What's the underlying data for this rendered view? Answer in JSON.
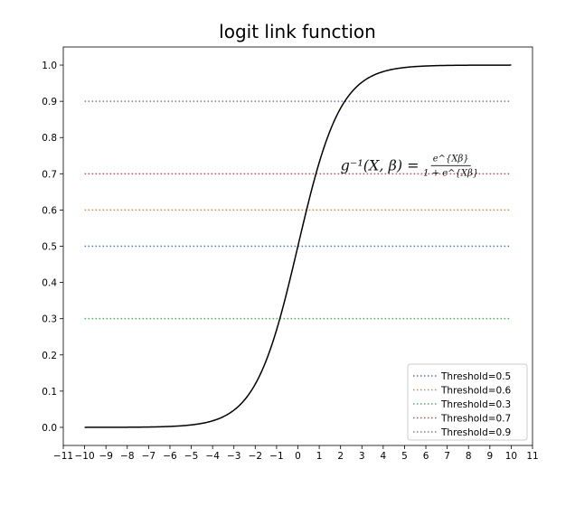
{
  "chart_data": {
    "type": "line",
    "title": "logit link function",
    "xlabel": "",
    "ylabel": "",
    "xlim": [
      -11,
      11
    ],
    "ylim": [
      -0.05,
      1.05
    ],
    "x_ticks": [
      -11,
      -10,
      -9,
      -8,
      -7,
      -6,
      -5,
      -4,
      -3,
      -2,
      -1,
      0,
      1,
      2,
      3,
      4,
      5,
      6,
      7,
      8,
      9,
      10,
      11
    ],
    "y_ticks": [
      0.0,
      0.1,
      0.2,
      0.3,
      0.4,
      0.5,
      0.6,
      0.7,
      0.8,
      0.9,
      1.0
    ],
    "x_tick_labels": [
      "−11",
      "−10",
      "−9",
      "−8",
      "−7",
      "−6",
      "−5",
      "−4",
      "−3",
      "−2",
      "−1",
      "0",
      "1",
      "2",
      "3",
      "4",
      "5",
      "6",
      "7",
      "8",
      "9",
      "10",
      "11"
    ],
    "y_tick_labels": [
      "0.0",
      "0.1",
      "0.2",
      "0.3",
      "0.4",
      "0.5",
      "0.6",
      "0.7",
      "0.8",
      "0.9",
      "1.0"
    ],
    "grid": false,
    "legend_position": "lower-right",
    "curve": {
      "function": "sigmoid",
      "x_range": [
        -10,
        10
      ],
      "color": "#000000"
    },
    "thresholds": [
      {
        "name": "Threshold=0.5",
        "value": 0.5,
        "color": "#4c72b0",
        "x_range": [
          -10,
          10
        ]
      },
      {
        "name": "Threshold=0.6",
        "value": 0.6,
        "color": "#dd8452",
        "x_range": [
          -10,
          10
        ]
      },
      {
        "name": "Threshold=0.3",
        "value": 0.3,
        "color": "#55a868",
        "x_range": [
          -10,
          10
        ]
      },
      {
        "name": "Threshold=0.7",
        "value": 0.7,
        "color": "#c44e52",
        "x_range": [
          -10,
          10
        ]
      },
      {
        "name": "Threshold=0.9",
        "value": 0.9,
        "color": "#8172b3",
        "x_range": [
          -10,
          10
        ]
      }
    ],
    "annotation": {
      "lhs": "g⁻¹(X, β) =",
      "numerator": "e^{Xβ}",
      "denominator": "1 + e^{Xβ}",
      "x": 2.0,
      "y": 0.71
    }
  }
}
